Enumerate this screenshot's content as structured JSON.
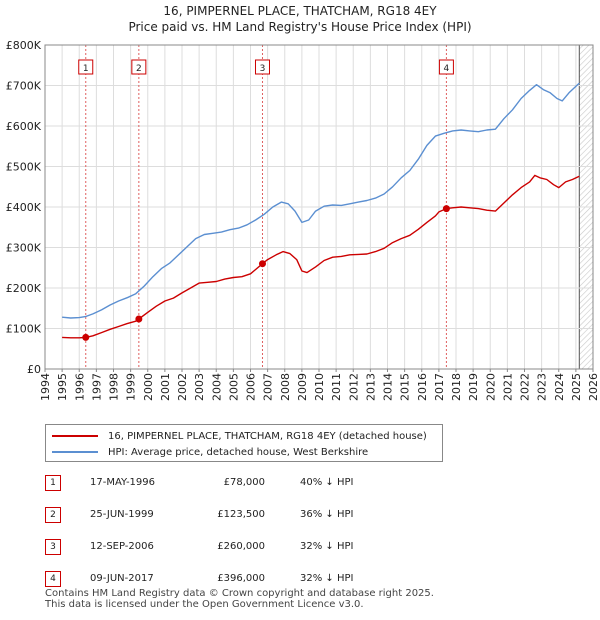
{
  "chart_data": {
    "type": "line",
    "title": "16, PIMPERNEL PLACE, THATCHAM, RG18 4EY",
    "subtitle": "Price paid vs. HM Land Registry's House Price Index (HPI)",
    "xlim": [
      1994,
      2026
    ],
    "ylim": [
      0,
      800000
    ],
    "x_ticks": [
      "1994",
      "1995",
      "1996",
      "1997",
      "1998",
      "1999",
      "2000",
      "2001",
      "2002",
      "2003",
      "2004",
      "2005",
      "2006",
      "2007",
      "2008",
      "2009",
      "2010",
      "2011",
      "2012",
      "2013",
      "2014",
      "2015",
      "2016",
      "2017",
      "2018",
      "2019",
      "2020",
      "2021",
      "2022",
      "2023",
      "2024",
      "2025",
      "2026"
    ],
    "y_ticks": [
      {
        "value": 0,
        "label": "£0"
      },
      {
        "value": 100000,
        "label": "£100K"
      },
      {
        "value": 200000,
        "label": "£200K"
      },
      {
        "value": 300000,
        "label": "£300K"
      },
      {
        "value": 400000,
        "label": "£400K"
      },
      {
        "value": 500000,
        "label": "£500K"
      },
      {
        "value": 600000,
        "label": "£600K"
      },
      {
        "value": 700000,
        "label": "£700K"
      },
      {
        "value": 800000,
        "label": "£800K"
      }
    ],
    "grid": true,
    "data_end_year": 2025.2,
    "series": [
      {
        "name": "16, PIMPERNEL PLACE, THATCHAM, RG18 4EY (detached house)",
        "color": "#cc0000",
        "points": [
          [
            1995.0,
            78000
          ],
          [
            1995.5,
            77000
          ],
          [
            1996.0,
            77000
          ],
          [
            1996.38,
            78000
          ],
          [
            1996.8,
            82000
          ],
          [
            1997.3,
            90000
          ],
          [
            1997.8,
            98000
          ],
          [
            1998.3,
            105000
          ],
          [
            1998.8,
            112000
          ],
          [
            1999.3,
            118000
          ],
          [
            1999.48,
            123500
          ],
          [
            2000.0,
            140000
          ],
          [
            2000.5,
            155000
          ],
          [
            2001.0,
            168000
          ],
          [
            2001.5,
            175000
          ],
          [
            2002.0,
            188000
          ],
          [
            2002.5,
            200000
          ],
          [
            2003.0,
            212000
          ],
          [
            2003.5,
            214000
          ],
          [
            2004.0,
            216000
          ],
          [
            2004.5,
            222000
          ],
          [
            2005.0,
            226000
          ],
          [
            2005.5,
            228000
          ],
          [
            2006.0,
            235000
          ],
          [
            2006.7,
            260000
          ],
          [
            2007.0,
            270000
          ],
          [
            2007.5,
            282000
          ],
          [
            2007.9,
            290000
          ],
          [
            2008.3,
            285000
          ],
          [
            2008.7,
            270000
          ],
          [
            2009.0,
            242000
          ],
          [
            2009.3,
            238000
          ],
          [
            2009.8,
            252000
          ],
          [
            2010.3,
            268000
          ],
          [
            2010.8,
            276000
          ],
          [
            2011.3,
            278000
          ],
          [
            2011.8,
            282000
          ],
          [
            2012.3,
            283000
          ],
          [
            2012.8,
            284000
          ],
          [
            2013.3,
            290000
          ],
          [
            2013.8,
            298000
          ],
          [
            2014.3,
            312000
          ],
          [
            2014.8,
            322000
          ],
          [
            2015.3,
            330000
          ],
          [
            2015.8,
            345000
          ],
          [
            2016.3,
            362000
          ],
          [
            2016.8,
            378000
          ],
          [
            2017.0,
            388000
          ],
          [
            2017.44,
            396000
          ],
          [
            2017.8,
            398000
          ],
          [
            2018.3,
            400000
          ],
          [
            2018.8,
            398000
          ],
          [
            2019.3,
            396000
          ],
          [
            2019.8,
            392000
          ],
          [
            2020.3,
            390000
          ],
          [
            2020.8,
            410000
          ],
          [
            2021.3,
            430000
          ],
          [
            2021.8,
            448000
          ],
          [
            2022.3,
            462000
          ],
          [
            2022.6,
            478000
          ],
          [
            2022.9,
            472000
          ],
          [
            2023.3,
            468000
          ],
          [
            2023.7,
            455000
          ],
          [
            2024.0,
            448000
          ],
          [
            2024.4,
            462000
          ],
          [
            2024.8,
            468000
          ],
          [
            2025.2,
            476000
          ]
        ]
      },
      {
        "name": "HPI: Average price, detached house, West Berkshire",
        "color": "#5b8fd1",
        "points": [
          [
            1995.0,
            128000
          ],
          [
            1995.5,
            126000
          ],
          [
            1996.0,
            127000
          ],
          [
            1996.4,
            130000
          ],
          [
            1996.8,
            136000
          ],
          [
            1997.3,
            146000
          ],
          [
            1997.8,
            158000
          ],
          [
            1998.3,
            168000
          ],
          [
            1998.8,
            176000
          ],
          [
            1999.3,
            186000
          ],
          [
            1999.8,
            205000
          ],
          [
            2000.3,
            228000
          ],
          [
            2000.8,
            248000
          ],
          [
            2001.3,
            262000
          ],
          [
            2001.8,
            282000
          ],
          [
            2002.3,
            302000
          ],
          [
            2002.8,
            322000
          ],
          [
            2003.3,
            332000
          ],
          [
            2003.8,
            335000
          ],
          [
            2004.3,
            338000
          ],
          [
            2004.8,
            344000
          ],
          [
            2005.3,
            348000
          ],
          [
            2005.8,
            356000
          ],
          [
            2006.3,
            368000
          ],
          [
            2006.8,
            382000
          ],
          [
            2007.3,
            400000
          ],
          [
            2007.8,
            412000
          ],
          [
            2008.2,
            408000
          ],
          [
            2008.6,
            390000
          ],
          [
            2009.0,
            362000
          ],
          [
            2009.4,
            368000
          ],
          [
            2009.8,
            390000
          ],
          [
            2010.3,
            402000
          ],
          [
            2010.8,
            405000
          ],
          [
            2011.3,
            404000
          ],
          [
            2011.8,
            408000
          ],
          [
            2012.3,
            412000
          ],
          [
            2012.8,
            416000
          ],
          [
            2013.3,
            422000
          ],
          [
            2013.8,
            432000
          ],
          [
            2014.3,
            450000
          ],
          [
            2014.8,
            472000
          ],
          [
            2015.3,
            490000
          ],
          [
            2015.8,
            518000
          ],
          [
            2016.3,
            552000
          ],
          [
            2016.8,
            575000
          ],
          [
            2017.3,
            582000
          ],
          [
            2017.8,
            588000
          ],
          [
            2018.3,
            590000
          ],
          [
            2018.8,
            588000
          ],
          [
            2019.3,
            586000
          ],
          [
            2019.8,
            590000
          ],
          [
            2020.3,
            592000
          ],
          [
            2020.8,
            618000
          ],
          [
            2021.3,
            640000
          ],
          [
            2021.8,
            668000
          ],
          [
            2022.3,
            688000
          ],
          [
            2022.7,
            702000
          ],
          [
            2023.1,
            690000
          ],
          [
            2023.5,
            682000
          ],
          [
            2023.9,
            668000
          ],
          [
            2024.2,
            662000
          ],
          [
            2024.6,
            682000
          ],
          [
            2025.2,
            706000
          ]
        ]
      }
    ],
    "markers": [
      {
        "label": "1",
        "x": 1996.38,
        "y": 78000
      },
      {
        "label": "2",
        "x": 1999.48,
        "y": 123500
      },
      {
        "label": "3",
        "x": 2006.7,
        "y": 260000
      },
      {
        "label": "4",
        "x": 2017.44,
        "y": 396000
      }
    ]
  },
  "legend": {
    "property_label": "16, PIMPERNEL PLACE, THATCHAM, RG18 4EY (detached house)",
    "hpi_label": "HPI: Average price, detached house, West Berkshire"
  },
  "transactions": [
    {
      "num": "1",
      "date": "17-MAY-1996",
      "price": "£78,000",
      "hpi": "40% ↓ HPI"
    },
    {
      "num": "2",
      "date": "25-JUN-1999",
      "price": "£123,500",
      "hpi": "36% ↓ HPI"
    },
    {
      "num": "3",
      "date": "12-SEP-2006",
      "price": "£260,000",
      "hpi": "32% ↓ HPI"
    },
    {
      "num": "4",
      "date": "09-JUN-2017",
      "price": "£396,000",
      "hpi": "32% ↓ HPI"
    }
  ],
  "footer": {
    "line1": "Contains HM Land Registry data © Crown copyright and database right 2025.",
    "line2": "This data is licensed under the Open Government Licence v3.0."
  }
}
